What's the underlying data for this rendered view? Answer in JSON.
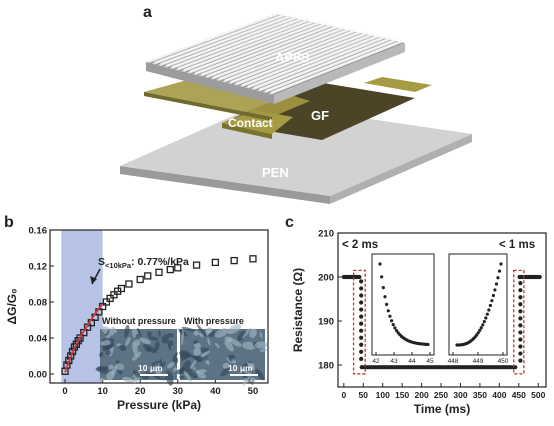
{
  "panel_a": {
    "letter": "a",
    "layers": {
      "apfs": "APFS",
      "gf": "GF",
      "contact": "Contact",
      "pen": "PEN"
    }
  },
  "panel_b": {
    "letter": "b",
    "sensitivity_label": "S",
    "sensitivity_sub": "<10kPa",
    "sensitivity_value": ": 0.77%/kPa",
    "inset_left_label": "Without pressure",
    "inset_right_label": "With pressure",
    "scale_left": "10 μm",
    "scale_right": "10 μm"
  },
  "panel_c": {
    "letter": "c",
    "left_annot": "< 2 ms",
    "right_annot": "< 1 ms"
  },
  "chart_data": [
    {
      "type": "scatter",
      "panel": "b",
      "xlabel": "Pressure (kPa)",
      "ylabel": "ΔG/G₀",
      "xlim": [
        -4,
        54
      ],
      "ylim": [
        -0.01,
        0.16
      ],
      "x_ticks": [
        0,
        10,
        20,
        30,
        40,
        50
      ],
      "y_ticks": [
        0.0,
        0.04,
        0.08,
        0.12,
        0.16
      ],
      "y_tick_labels": [
        "0.00",
        "0.04",
        "0.08",
        "0.12",
        "0.16"
      ],
      "highlight_range": [
        -1,
        10
      ],
      "x": [
        0,
        0.5,
        1,
        1.5,
        2,
        2.5,
        3,
        3.5,
        4,
        5,
        6,
        7,
        8,
        9,
        10,
        11,
        12,
        13,
        14,
        15,
        17,
        20,
        22,
        25,
        28,
        30,
        35,
        40,
        45,
        50
      ],
      "y": [
        0.003,
        0.01,
        0.015,
        0.02,
        0.025,
        0.03,
        0.033,
        0.037,
        0.04,
        0.046,
        0.052,
        0.057,
        0.063,
        0.069,
        0.075,
        0.08,
        0.084,
        0.088,
        0.092,
        0.095,
        0.1,
        0.105,
        0.109,
        0.113,
        0.116,
        0.118,
        0.121,
        0.124,
        0.126,
        0.128
      ],
      "fit_x": [
        0,
        2,
        4,
        6,
        8,
        10
      ],
      "fit_y": [
        0.002,
        0.024,
        0.041,
        0.054,
        0.067,
        0.078
      ]
    },
    {
      "type": "scatter",
      "panel": "c",
      "xlabel": "Time (ms)",
      "ylabel": "Resistance (Ω)",
      "xlim": [
        -15,
        520
      ],
      "ylim": [
        175,
        210
      ],
      "x_ticks": [
        0,
        50,
        100,
        150,
        200,
        250,
        300,
        350,
        400,
        450,
        500
      ],
      "y_ticks": [
        180,
        190,
        200,
        210
      ],
      "low_level": 179.5,
      "high_level": 200,
      "drop_time": 42,
      "rise_time": 449,
      "insets": [
        {
          "xlim": [
            41.8,
            45
          ],
          "x_ticks": [
            42,
            43,
            44,
            45
          ]
        },
        {
          "xlim": [
            448,
            450
          ],
          "x_ticks": [
            448,
            449,
            450
          ]
        }
      ]
    }
  ]
}
